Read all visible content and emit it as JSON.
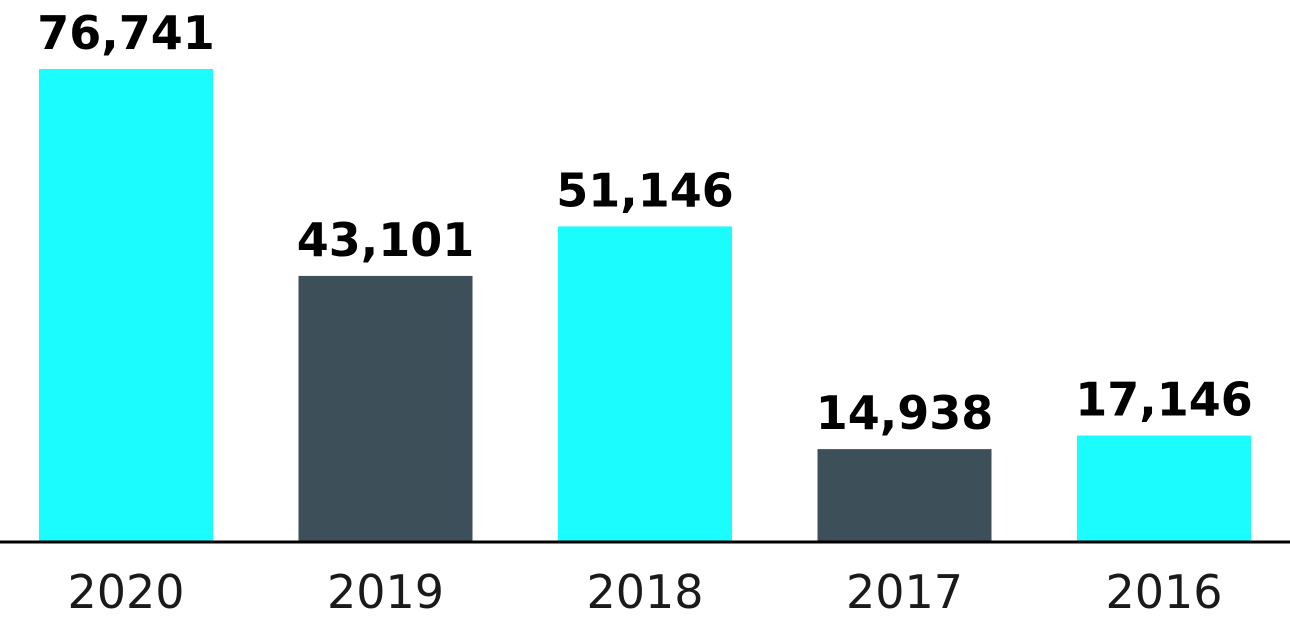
{
  "chart_data": {
    "type": "bar",
    "title": "",
    "xlabel": "",
    "ylabel": "",
    "categories": [
      "2020",
      "2019",
      "2018",
      "2017",
      "2016"
    ],
    "values": [
      76741,
      43101,
      51146,
      14938,
      17146
    ],
    "value_labels": [
      "76,741",
      "43,101",
      "51,146",
      "14,938",
      "17,146"
    ],
    "bar_colors": [
      "#1bfcff",
      "#3d4f59",
      "#1bfcff",
      "#3d4f59",
      "#1bfcff"
    ],
    "ylim": [
      0,
      76741
    ],
    "grid": false,
    "legend": "none"
  }
}
